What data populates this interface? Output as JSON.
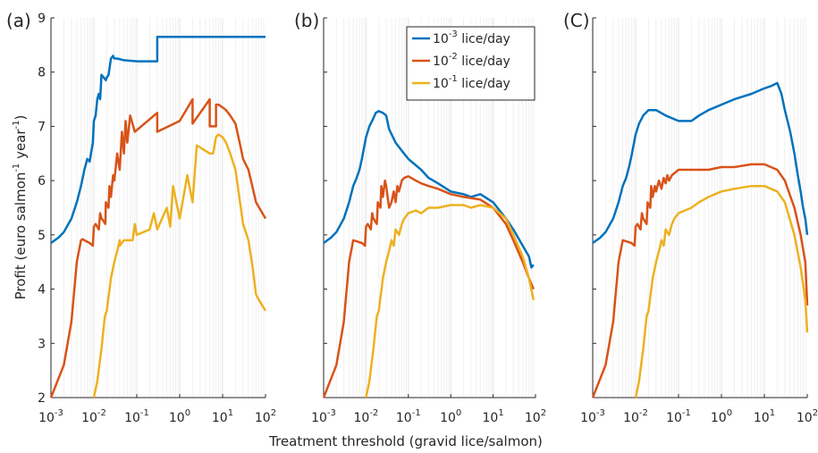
{
  "figure": {
    "xlabel": "Treatment threshold (gravid lice/salmon)",
    "ylabel_base": "Profit (euro salmon",
    "ylabel_mid": "year",
    "ylabel_end": ")",
    "ylabel_exp": "-1"
  },
  "legend": {
    "items": [
      {
        "base": "10",
        "exp": "-3",
        "text": " lice/day",
        "color": "#0072BD"
      },
      {
        "base": "10",
        "exp": "-2",
        "text": " lice/day",
        "color": "#D95319"
      },
      {
        "base": "10",
        "exp": "-1",
        "text": " lice/day",
        "color": "#EDB120"
      }
    ]
  },
  "axes": {
    "x_ticks": [
      {
        "base": "10",
        "exp": "-3",
        "value": 0.001
      },
      {
        "base": "10",
        "exp": "-2",
        "value": 0.01
      },
      {
        "base": "10",
        "exp": "-1",
        "value": 0.1
      },
      {
        "base": "10",
        "exp": "0",
        "value": 1
      },
      {
        "base": "10",
        "exp": "1",
        "value": 10
      },
      {
        "base": "10",
        "exp": "2",
        "value": 100
      }
    ],
    "y_ticks": [
      "2",
      "3",
      "4",
      "5",
      "6",
      "7",
      "8",
      "9"
    ]
  },
  "chart_data": [
    {
      "type": "line",
      "panel_label": "(a)",
      "xscale": "log",
      "xlim": [
        0.001,
        100
      ],
      "ylim": [
        2,
        9
      ],
      "grid": "vertical minor",
      "series": [
        {
          "name": "10^-3 lice/day",
          "color": "#0072BD",
          "x": [
            0.001,
            0.0015,
            0.002,
            0.003,
            0.004,
            0.005,
            0.006,
            0.007,
            0.008,
            0.009,
            0.0095,
            0.01,
            0.011,
            0.012,
            0.013,
            0.014,
            0.0145,
            0.015,
            0.017,
            0.019,
            0.02,
            0.022,
            0.025,
            0.028,
            0.03,
            0.035,
            0.05,
            0.1,
            0.2,
            0.3,
            0.3,
            1,
            10,
            100
          ],
          "y": [
            4.85,
            4.95,
            5.05,
            5.3,
            5.6,
            5.9,
            6.2,
            6.4,
            6.35,
            6.6,
            6.7,
            7.1,
            7.2,
            7.5,
            7.6,
            7.5,
            7.7,
            7.95,
            7.9,
            7.85,
            7.9,
            7.95,
            8.25,
            8.3,
            8.25,
            8.25,
            8.22,
            8.2,
            8.2,
            8.2,
            8.65,
            8.65,
            8.65,
            8.65
          ]
        },
        {
          "name": "10^-2 lice/day",
          "color": "#D95319",
          "x": [
            0.001,
            0.002,
            0.003,
            0.004,
            0.005,
            0.0055,
            0.006,
            0.008,
            0.0095,
            0.01,
            0.011,
            0.013,
            0.014,
            0.015,
            0.017,
            0.0185,
            0.019,
            0.022,
            0.023,
            0.025,
            0.028,
            0.03,
            0.035,
            0.04,
            0.045,
            0.05,
            0.055,
            0.06,
            0.07,
            0.09,
            0.3,
            0.3,
            1,
            2,
            2,
            5,
            5,
            7,
            7,
            8,
            10,
            12,
            15,
            20,
            25,
            30,
            40,
            60,
            100
          ],
          "y": [
            2.0,
            2.6,
            3.4,
            4.5,
            4.9,
            4.92,
            4.9,
            4.85,
            4.8,
            5.15,
            5.2,
            5.1,
            5.4,
            5.3,
            5.25,
            5.2,
            5.6,
            5.5,
            5.9,
            5.7,
            6.1,
            6.0,
            6.5,
            6.2,
            6.9,
            6.5,
            7.1,
            6.7,
            7.2,
            6.9,
            7.25,
            6.9,
            7.1,
            7.5,
            7.05,
            7.5,
            7.0,
            7.0,
            7.4,
            7.4,
            7.35,
            7.3,
            7.2,
            7.05,
            6.7,
            6.4,
            6.2,
            5.6,
            5.3
          ]
        },
        {
          "name": "10^-1 lice/day",
          "color": "#EDB120",
          "x": [
            0.01,
            0.012,
            0.015,
            0.018,
            0.02,
            0.025,
            0.03,
            0.035,
            0.04,
            0.04,
            0.05,
            0.08,
            0.09,
            0.1,
            0.2,
            0.25,
            0.3,
            0.5,
            0.6,
            0.7,
            1,
            1.5,
            2,
            2.5,
            5,
            6,
            7,
            8,
            10,
            12,
            15,
            20,
            30,
            40,
            50,
            60,
            70,
            100
          ],
          "y": [
            2.0,
            2.3,
            2.9,
            3.5,
            3.6,
            4.2,
            4.5,
            4.7,
            4.9,
            4.8,
            4.9,
            4.9,
            5.2,
            5.0,
            5.1,
            5.4,
            5.1,
            5.5,
            5.15,
            5.9,
            5.3,
            6.1,
            5.6,
            6.65,
            6.5,
            6.5,
            6.8,
            6.85,
            6.8,
            6.7,
            6.5,
            6.2,
            5.2,
            4.9,
            4.4,
            3.9,
            3.8,
            3.6
          ]
        }
      ]
    },
    {
      "type": "line",
      "panel_label": "(b)",
      "xscale": "log",
      "xlim": [
        0.001,
        100
      ],
      "ylim": [
        2,
        9
      ],
      "grid": "vertical minor",
      "series": [
        {
          "name": "10^-3 lice/day",
          "color": "#0072BD",
          "x": [
            0.001,
            0.0015,
            0.002,
            0.003,
            0.004,
            0.005,
            0.006,
            0.007,
            0.008,
            0.01,
            0.012,
            0.015,
            0.017,
            0.02,
            0.025,
            0.03,
            0.035,
            0.05,
            0.07,
            0.1,
            0.2,
            0.3,
            0.5,
            1,
            2,
            3,
            5,
            10,
            20,
            30,
            50,
            70,
            80,
            90
          ],
          "y": [
            4.85,
            4.95,
            5.05,
            5.3,
            5.6,
            5.9,
            6.05,
            6.2,
            6.4,
            6.8,
            7.0,
            7.15,
            7.25,
            7.28,
            7.25,
            7.2,
            6.95,
            6.7,
            6.55,
            6.4,
            6.2,
            6.05,
            5.95,
            5.8,
            5.75,
            5.7,
            5.75,
            5.6,
            5.3,
            5.1,
            4.8,
            4.6,
            4.4,
            4.45
          ]
        },
        {
          "name": "10^-2 lice/day",
          "color": "#D95319",
          "x": [
            0.001,
            0.002,
            0.003,
            0.004,
            0.005,
            0.006,
            0.008,
            0.0095,
            0.01,
            0.011,
            0.013,
            0.014,
            0.015,
            0.018,
            0.019,
            0.022,
            0.023,
            0.025,
            0.028,
            0.03,
            0.035,
            0.04,
            0.045,
            0.05,
            0.055,
            0.06,
            0.07,
            0.08,
            0.1,
            0.15,
            0.2,
            0.3,
            0.5,
            1,
            2,
            5,
            10,
            20,
            30,
            50,
            70,
            90
          ],
          "y": [
            2.0,
            2.6,
            3.4,
            4.5,
            4.9,
            4.88,
            4.85,
            4.8,
            5.15,
            5.2,
            5.1,
            5.4,
            5.3,
            5.2,
            5.6,
            5.5,
            5.9,
            5.7,
            6.0,
            5.9,
            5.5,
            5.6,
            5.8,
            5.6,
            5.9,
            5.8,
            6.0,
            6.05,
            6.08,
            6.0,
            5.95,
            5.9,
            5.85,
            5.75,
            5.7,
            5.65,
            5.5,
            5.2,
            4.9,
            4.5,
            4.2,
            4.0
          ]
        },
        {
          "name": "10^-1 lice/day",
          "color": "#EDB120",
          "x": [
            0.01,
            0.012,
            0.015,
            0.018,
            0.02,
            0.025,
            0.03,
            0.035,
            0.04,
            0.045,
            0.05,
            0.06,
            0.07,
            0.08,
            0.1,
            0.15,
            0.2,
            0.3,
            0.5,
            1,
            2,
            3,
            5,
            10,
            20,
            30,
            50,
            70,
            90
          ],
          "y": [
            2.0,
            2.3,
            2.9,
            3.5,
            3.6,
            4.2,
            4.5,
            4.7,
            4.9,
            4.8,
            5.1,
            5.0,
            5.2,
            5.3,
            5.4,
            5.45,
            5.4,
            5.5,
            5.5,
            5.55,
            5.55,
            5.5,
            5.55,
            5.5,
            5.3,
            5.0,
            4.6,
            4.2,
            3.8
          ]
        }
      ]
    },
    {
      "type": "line",
      "panel_label": "(C)",
      "xscale": "log",
      "xlim": [
        0.001,
        100
      ],
      "ylim": [
        2,
        9
      ],
      "grid": "vertical minor",
      "series": [
        {
          "name": "10^-3 lice/day",
          "color": "#0072BD",
          "x": [
            0.001,
            0.0015,
            0.002,
            0.003,
            0.004,
            0.005,
            0.006,
            0.007,
            0.008,
            0.01,
            0.012,
            0.015,
            0.02,
            0.03,
            0.05,
            0.1,
            0.2,
            0.3,
            0.5,
            1,
            2,
            5,
            10,
            15,
            20,
            25,
            30,
            40,
            50,
            60,
            70,
            80,
            90,
            100
          ],
          "y": [
            4.85,
            4.95,
            5.05,
            5.3,
            5.6,
            5.9,
            6.05,
            6.25,
            6.45,
            6.85,
            7.05,
            7.2,
            7.3,
            7.3,
            7.2,
            7.1,
            7.1,
            7.2,
            7.3,
            7.4,
            7.5,
            7.6,
            7.7,
            7.75,
            7.8,
            7.6,
            7.3,
            6.9,
            6.5,
            6.1,
            5.8,
            5.5,
            5.3,
            5.0
          ]
        },
        {
          "name": "10^-2 lice/day",
          "color": "#D95319",
          "x": [
            0.001,
            0.002,
            0.003,
            0.004,
            0.005,
            0.006,
            0.008,
            0.0095,
            0.01,
            0.011,
            0.013,
            0.014,
            0.015,
            0.018,
            0.019,
            0.022,
            0.023,
            0.025,
            0.028,
            0.03,
            0.035,
            0.04,
            0.045,
            0.05,
            0.055,
            0.06,
            0.07,
            0.1,
            0.2,
            0.5,
            1,
            2,
            5,
            10,
            20,
            30,
            50,
            70,
            90,
            100
          ],
          "y": [
            2.0,
            2.6,
            3.4,
            4.5,
            4.9,
            4.88,
            4.85,
            4.8,
            5.15,
            5.2,
            5.1,
            5.4,
            5.3,
            5.2,
            5.6,
            5.5,
            5.9,
            5.7,
            5.9,
            5.8,
            6.0,
            5.85,
            6.05,
            5.95,
            6.1,
            6.0,
            6.1,
            6.2,
            6.2,
            6.2,
            6.25,
            6.25,
            6.3,
            6.3,
            6.2,
            6.0,
            5.5,
            5.0,
            4.5,
            3.7
          ]
        },
        {
          "name": "10^-1 lice/day",
          "color": "#EDB120",
          "x": [
            0.01,
            0.012,
            0.015,
            0.018,
            0.02,
            0.025,
            0.03,
            0.035,
            0.04,
            0.045,
            0.05,
            0.06,
            0.07,
            0.08,
            0.1,
            0.2,
            0.3,
            0.5,
            1,
            2,
            5,
            10,
            20,
            30,
            50,
            70,
            90,
            100
          ],
          "y": [
            2.0,
            2.3,
            2.9,
            3.5,
            3.6,
            4.2,
            4.5,
            4.7,
            4.9,
            4.8,
            5.1,
            5.0,
            5.2,
            5.3,
            5.4,
            5.5,
            5.6,
            5.7,
            5.8,
            5.85,
            5.9,
            5.9,
            5.8,
            5.6,
            5.0,
            4.4,
            3.8,
            3.2
          ]
        }
      ]
    }
  ]
}
